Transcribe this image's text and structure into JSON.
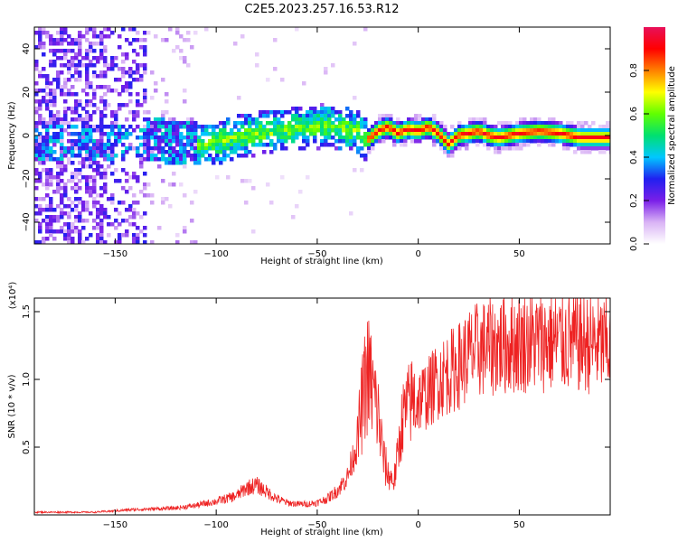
{
  "title": "C2E5.2023.257.16.53.R12",
  "colors": {
    "snr_line": "#ee2222",
    "colormap": [
      "#ffffff",
      "#d9b3f5",
      "#7a1fe8",
      "#2020f0",
      "#00c8ff",
      "#00e070",
      "#60ff00",
      "#ffff00",
      "#ff8000",
      "#ff0000",
      "#e8105a"
    ]
  },
  "chart_data": [
    {
      "type": "heatmap",
      "xlabel": "Height of straight line (km)",
      "ylabel": "Frequency (Hz)",
      "xlim": [
        -190,
        95
      ],
      "ylim": [
        -50,
        50
      ],
      "x_ticks": [
        -150,
        -100,
        -50,
        0,
        50
      ],
      "y_ticks": [
        -40,
        -20,
        0,
        20,
        40
      ],
      "colorbar": {
        "label": "Normalized spectral amplitude",
        "range": [
          0,
          1
        ],
        "ticks": [
          "0.0",
          "0.2",
          "0.4",
          "0.6",
          "0.8"
        ],
        "tick_values": [
          0,
          0.2,
          0.4,
          0.6,
          0.8
        ]
      },
      "ridge": {
        "x": [
          -145,
          -130,
          -120,
          -110,
          -100,
          -90,
          -80,
          -70,
          -60,
          -50,
          -45,
          -40,
          -35,
          -30,
          -25,
          -20,
          -15,
          -10,
          -5,
          0,
          5,
          10,
          15,
          20,
          25,
          30,
          35,
          40,
          50,
          60,
          70,
          80,
          90
        ],
        "y": [
          -3,
          -2,
          -3,
          -4,
          -3,
          -1,
          1,
          2,
          3,
          4,
          5,
          4,
          3,
          2,
          -2,
          2,
          4,
          1,
          3,
          2,
          4,
          1,
          -4,
          0,
          1,
          2,
          0,
          -1,
          1,
          2,
          1,
          -1,
          -1
        ]
      }
    },
    {
      "type": "line",
      "xlabel": "Height of straight line (km)",
      "ylabel": "SNR (10 * v/v)",
      "multiplier_label": "(x10⁴)",
      "xlim": [
        -190,
        95
      ],
      "ylim": [
        0,
        1.6
      ],
      "x_ticks": [
        -150,
        -100,
        -50,
        0,
        50
      ],
      "y_ticks": [
        "0.5",
        "1.0",
        "1.5"
      ],
      "y_tick_values": [
        0.5,
        1.0,
        1.5
      ],
      "envelope": {
        "x": [
          -190,
          -160,
          -140,
          -120,
          -110,
          -100,
          -90,
          -85,
          -80,
          -75,
          -70,
          -65,
          -60,
          -55,
          -50,
          -45,
          -40,
          -35,
          -30,
          -27,
          -25,
          -23,
          -20,
          -17,
          -15,
          -12,
          -10,
          -8,
          -5,
          -3,
          0,
          3,
          5,
          10,
          15,
          20,
          25,
          30,
          40,
          50,
          60,
          70,
          80,
          95
        ],
        "y": [
          0.02,
          0.02,
          0.04,
          0.05,
          0.07,
          0.1,
          0.14,
          0.2,
          0.22,
          0.17,
          0.12,
          0.09,
          0.08,
          0.08,
          0.09,
          0.12,
          0.18,
          0.28,
          0.55,
          0.9,
          1.05,
          0.95,
          0.75,
          0.4,
          0.3,
          0.25,
          0.45,
          0.7,
          0.8,
          0.85,
          0.85,
          0.88,
          0.9,
          1.0,
          1.05,
          1.1,
          1.18,
          1.22,
          1.25,
          1.27,
          1.28,
          1.28,
          1.27,
          1.25
        ]
      }
    }
  ]
}
